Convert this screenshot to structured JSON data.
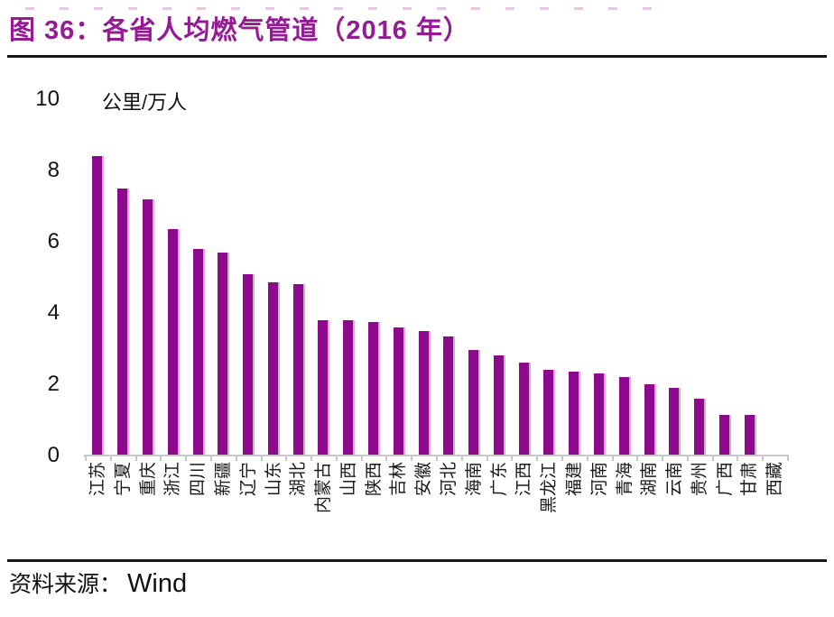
{
  "page": {
    "title": "图 36：各省人均燃气管道（2016 年）",
    "source": {
      "label": "资料来源：",
      "value": "Wind"
    }
  },
  "chart_data": {
    "type": "bar",
    "title": "各省人均燃气管道（2016 年）",
    "unit_label": "公里/万人",
    "categories": [
      "江苏",
      "宁夏",
      "重庆",
      "浙江",
      "四川",
      "新疆",
      "辽宁",
      "山东",
      "湖北",
      "内蒙古",
      "山西",
      "陕西",
      "吉林",
      "安徽",
      "河北",
      "海南",
      "广东",
      "江西",
      "黑龙江",
      "福建",
      "河南",
      "青海",
      "湖南",
      "云南",
      "贵州",
      "广西",
      "甘肃",
      "西藏"
    ],
    "values": [
      8.4,
      7.5,
      7.2,
      6.35,
      5.8,
      5.7,
      5.1,
      4.85,
      4.8,
      3.8,
      3.8,
      3.75,
      3.6,
      3.5,
      3.35,
      2.95,
      2.8,
      2.6,
      2.4,
      2.35,
      2.3,
      2.2,
      2.0,
      1.9,
      1.6,
      1.15,
      1.15,
      0
    ],
    "xlabel": "",
    "ylabel": "公里/万人",
    "ylim": [
      0,
      10
    ],
    "yticks": [
      0,
      2,
      4,
      6,
      8,
      10
    ],
    "grid": false,
    "legend_position": "none",
    "bar_color": "#8E0A8C",
    "title_color": "#951B95"
  }
}
